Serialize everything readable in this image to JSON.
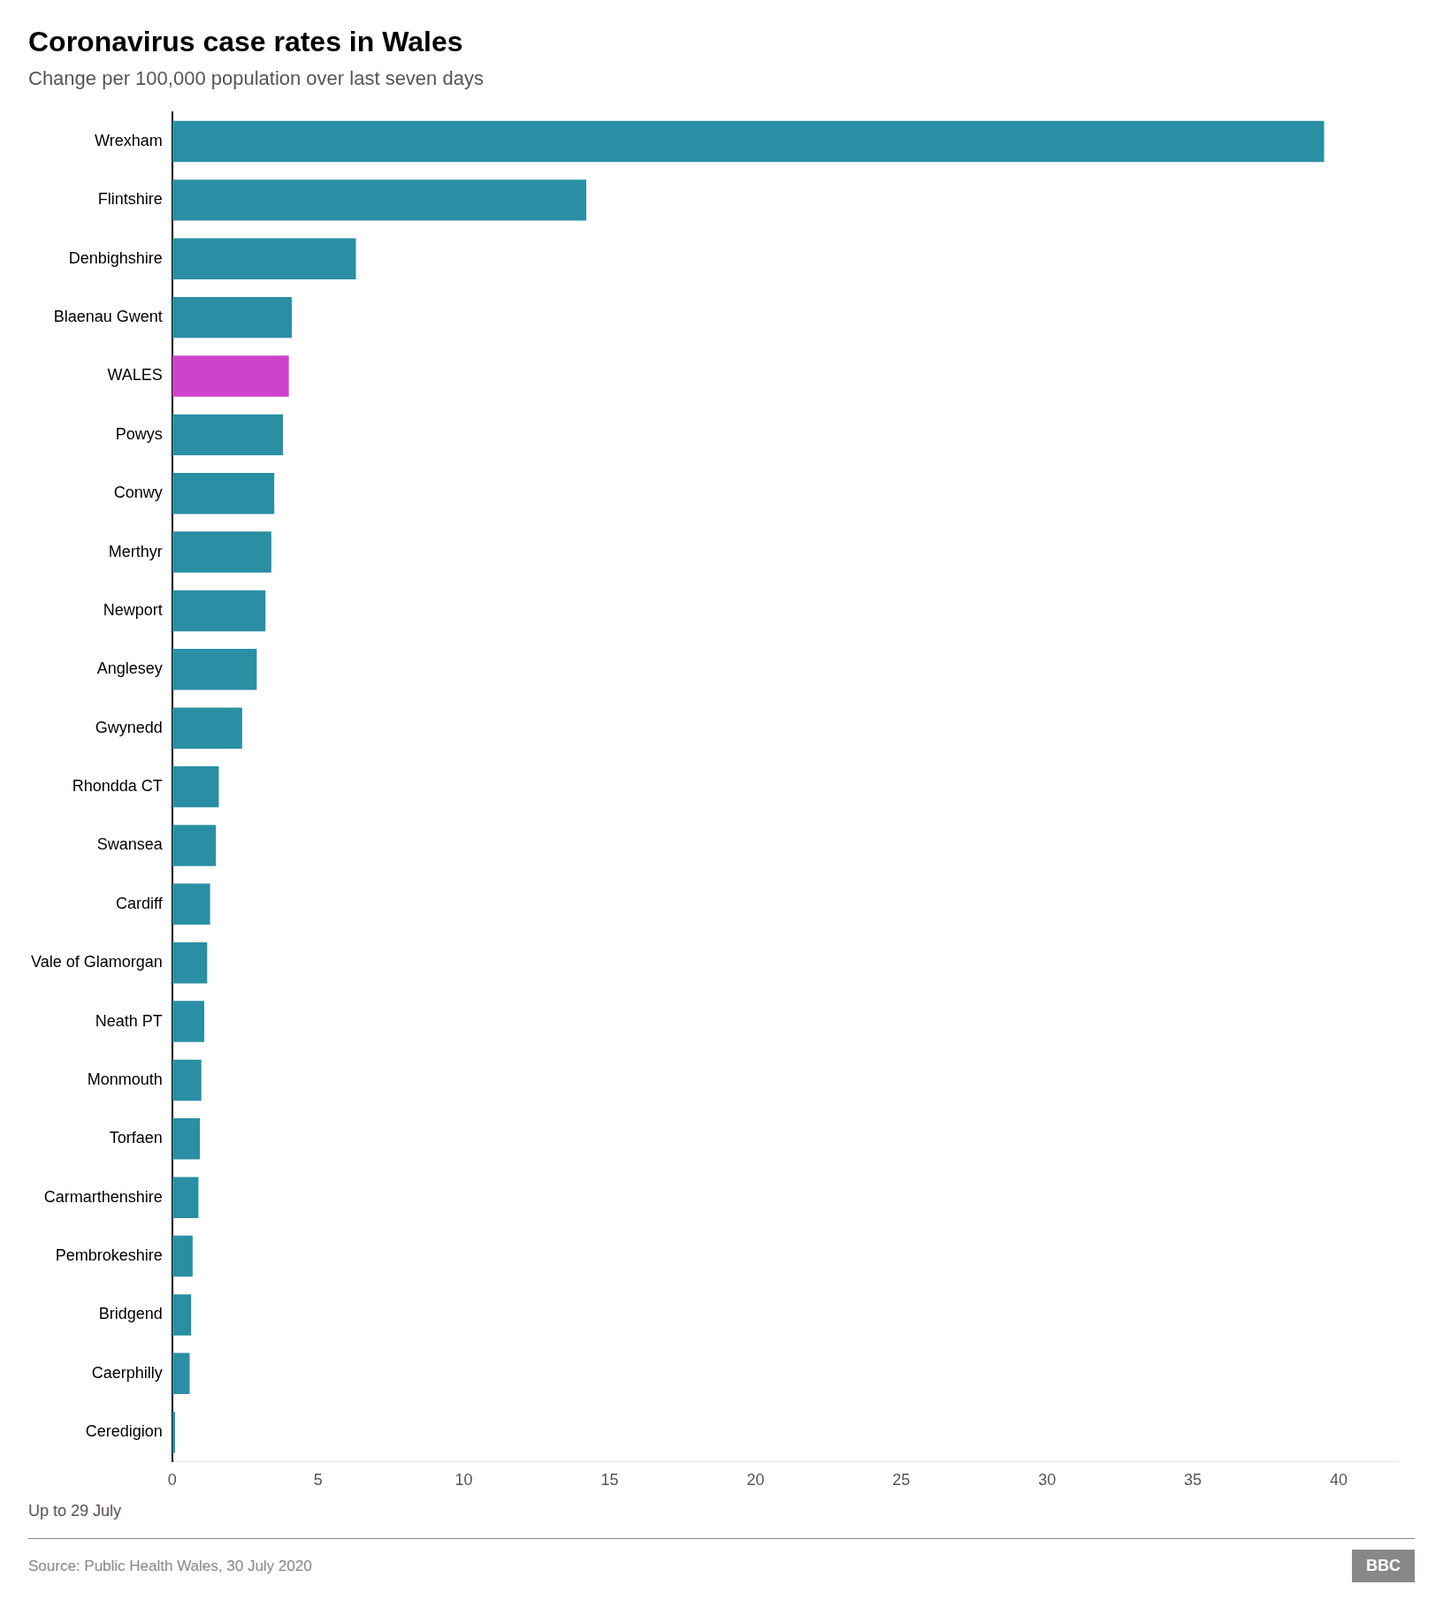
{
  "chart_data": {
    "type": "bar",
    "orientation": "horizontal",
    "title": "Coronavirus case rates in Wales",
    "subtitle": "Change per 100,000 population over last seven days",
    "footnote": "Up to 29 July",
    "source": "Source: Public Health Wales, 30 July 2020",
    "annotations": [
      "BBC"
    ],
    "categories": [
      "Wrexham",
      "Flintshire",
      "Denbighshire",
      "Blaenau Gwent",
      "WALES",
      "Powys",
      "Conwy",
      "Merthyr",
      "Newport",
      "Anglesey",
      "Gwynedd",
      "Rhondda CT",
      "Swansea",
      "Cardiff",
      "Vale of Glamorgan",
      "Neath PT",
      "Monmouth",
      "Torfaen",
      "Carmarthenshire",
      "Pembrokeshire",
      "Bridgend",
      "Caerphilly",
      "Ceredigion"
    ],
    "values": [
      39.5,
      14.2,
      6.3,
      4.1,
      4.0,
      3.8,
      3.5,
      3.4,
      3.2,
      2.9,
      2.4,
      1.6,
      1.5,
      1.3,
      1.2,
      1.1,
      1.0,
      0.95,
      0.9,
      0.7,
      0.65,
      0.6,
      0.1
    ],
    "colors": [
      "#2a8fa4",
      "#2a8fa4",
      "#2a8fa4",
      "#2a8fa4",
      "#cc44cc",
      "#2a8fa4",
      "#2a8fa4",
      "#2a8fa4",
      "#2a8fa4",
      "#2a8fa4",
      "#2a8fa4",
      "#2a8fa4",
      "#2a8fa4",
      "#2a8fa4",
      "#2a8fa4",
      "#2a8fa4",
      "#2a8fa4",
      "#2a8fa4",
      "#2a8fa4",
      "#2a8fa4",
      "#2a8fa4",
      "#2a8fa4",
      "#2a8fa4"
    ],
    "xlim": [
      0,
      42
    ],
    "xticks": [
      0,
      5,
      10,
      15,
      20,
      25,
      30,
      35,
      40
    ],
    "grid": false
  }
}
